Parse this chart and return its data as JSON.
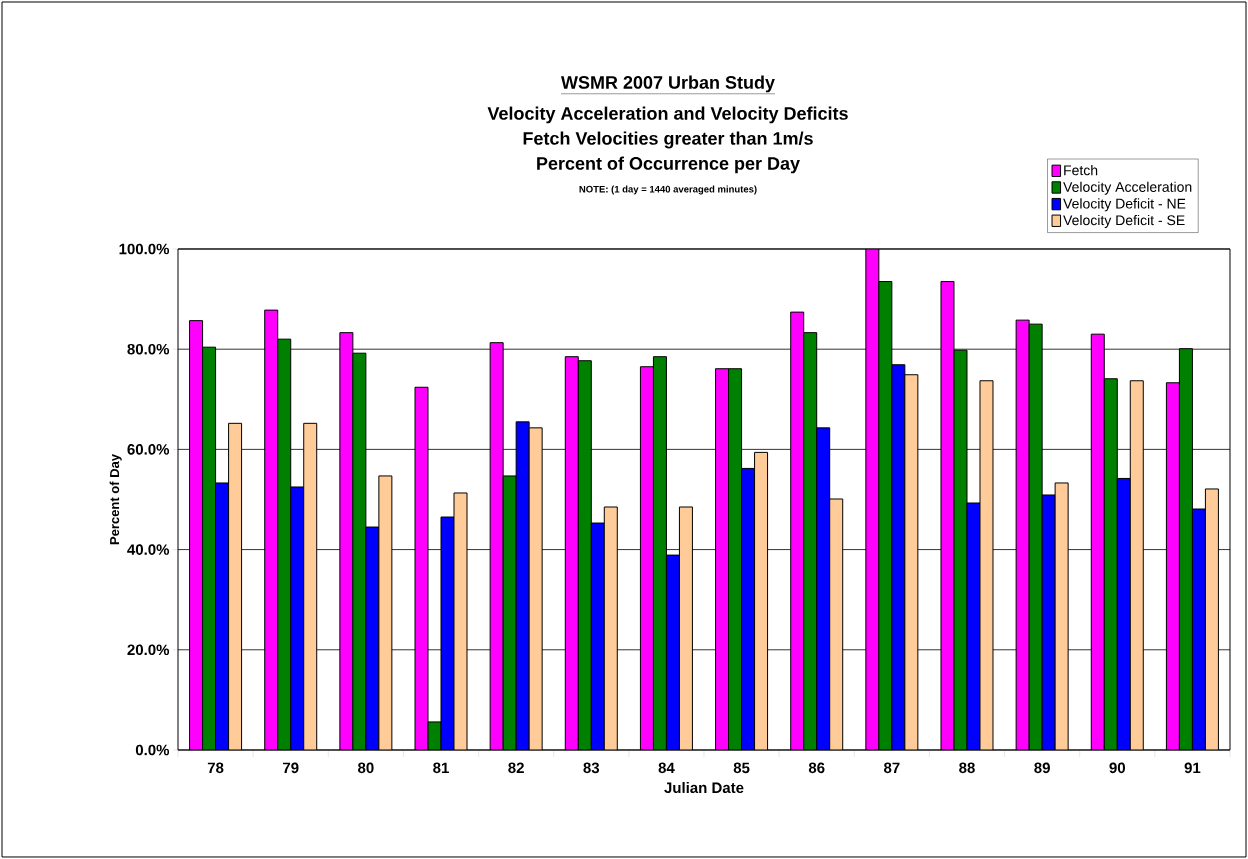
{
  "chart_data": {
    "type": "bar",
    "title": "WSMR 2007 Urban Study",
    "subtitle": [
      "Velocity Acceleration and Velocity Deficits",
      "Fetch Velocities greater than 1m/s",
      "Percent of Occurrence per Day"
    ],
    "annotations": [
      "NOTE:  (1 day = 1440 averaged minutes)"
    ],
    "xlabel": "Julian Date",
    "ylabel": "Percent of Day",
    "categories": [
      "78",
      "79",
      "80",
      "81",
      "82",
      "83",
      "84",
      "85",
      "86",
      "87",
      "88",
      "89",
      "90",
      "91"
    ],
    "series": [
      {
        "name": "Fetch",
        "color": "#ff00ff",
        "values": [
          85.7,
          87.8,
          83.3,
          72.4,
          81.3,
          78.5,
          76.5,
          76.1,
          87.4,
          100.0,
          93.5,
          85.8,
          83.0,
          73.3
        ]
      },
      {
        "name": "Velocity Acceleration",
        "color": "#008000",
        "values": [
          80.4,
          82.0,
          79.2,
          5.6,
          54.7,
          77.7,
          78.5,
          76.1,
          83.3,
          93.5,
          79.8,
          85.0,
          74.1,
          80.1
        ]
      },
      {
        "name": "Velocity Deficit - NE",
        "color": "#0000ff",
        "values": [
          53.3,
          52.5,
          44.5,
          46.5,
          65.5,
          45.3,
          38.9,
          56.2,
          64.3,
          76.9,
          49.3,
          50.9,
          54.2,
          48.1
        ]
      },
      {
        "name": "Velocity Deficit - SE",
        "color": "#ffcc99",
        "values": [
          65.2,
          65.2,
          54.7,
          51.3,
          64.3,
          48.5,
          48.5,
          59.4,
          50.1,
          74.9,
          73.7,
          53.3,
          73.7,
          52.1
        ]
      }
    ],
    "ylim": [
      0,
      100
    ],
    "yticks": [
      {
        "value": 0,
        "label": "0.0%"
      },
      {
        "value": 20,
        "label": "20.0%"
      },
      {
        "value": 40,
        "label": "40.0%"
      },
      {
        "value": 60,
        "label": "60.0%"
      },
      {
        "value": 80,
        "label": "80.0%"
      },
      {
        "value": 100,
        "label": "100.0%"
      }
    ],
    "grid": "y",
    "legend": "top right"
  }
}
